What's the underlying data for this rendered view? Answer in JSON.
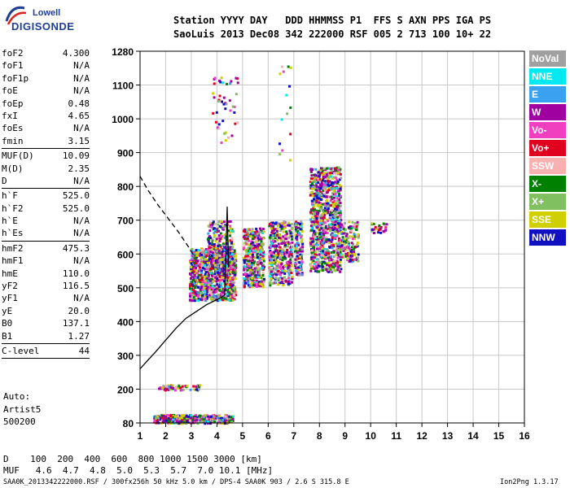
{
  "logo": {
    "line1": "Lowell",
    "line2": "DIGISONDE"
  },
  "header": {
    "line1": "Station YYYY DAY   DDD HHMMSS P1  FFS S AXN PPS IGA PS",
    "line2": "SaoLuis 2013 Dec08 342 222000 RSF 005 2 713 100 10+ 22"
  },
  "params": {
    "group1": [
      {
        "name": "foF2",
        "value": "4.300"
      },
      {
        "name": "foF1",
        "value": "N/A"
      },
      {
        "name": "foF1p",
        "value": "N/A"
      },
      {
        "name": "foE",
        "value": "N/A"
      },
      {
        "name": "foEp",
        "value": "0.48"
      },
      {
        "name": "fxI",
        "value": "4.65"
      },
      {
        "name": "foEs",
        "value": "N/A"
      },
      {
        "name": "fmin",
        "value": "3.15"
      }
    ],
    "group2": [
      {
        "name": "MUF(D)",
        "value": "10.09"
      },
      {
        "name": "M(D)",
        "value": "2.35"
      },
      {
        "name": "D",
        "value": "N/A"
      }
    ],
    "group3": [
      {
        "name": "h`F",
        "value": "525.0"
      },
      {
        "name": "h`F2",
        "value": "525.0"
      },
      {
        "name": "h`E",
        "value": "N/A"
      },
      {
        "name": "h`Es",
        "value": "N/A"
      }
    ],
    "group4": [
      {
        "name": "hmF2",
        "value": "475.3"
      },
      {
        "name": "hmF1",
        "value": "N/A"
      },
      {
        "name": "hmE",
        "value": "110.0"
      },
      {
        "name": "yF2",
        "value": "116.5"
      },
      {
        "name": "yF1",
        "value": "N/A"
      },
      {
        "name": "yE",
        "value": "20.0"
      },
      {
        "name": "B0",
        "value": "137.1"
      },
      {
        "name": "B1",
        "value": "1.27"
      }
    ],
    "group5": [
      {
        "name": "C-level",
        "value": "44"
      }
    ]
  },
  "auto": {
    "line1": "Auto:",
    "line2": "Artist5",
    "line3": "500200"
  },
  "legend": [
    {
      "label": "NoVal",
      "color": "#a0a0a0"
    },
    {
      "label": "NNE",
      "color": "#00e8f0"
    },
    {
      "label": "E",
      "color": "#3aa0f0"
    },
    {
      "label": "W",
      "color": "#a000a0"
    },
    {
      "label": "Vo-",
      "color": "#f040c0"
    },
    {
      "label": "Vo+",
      "color": "#e00020"
    },
    {
      "label": "SSW",
      "color": "#f8b0b0"
    },
    {
      "label": "X-",
      "color": "#008000"
    },
    {
      "label": "X+",
      "color": "#80c060"
    },
    {
      "label": "SSE",
      "color": "#d0d000"
    },
    {
      "label": "NNW",
      "color": "#1010c0"
    }
  ],
  "bottom": {
    "d_row": "D    100  200  400  600  800 1000 1500 3000 [km]",
    "muf_row": "MUF   4.6  4.7  4.8  5.0  5.3  5.7  7.0 10.1 [MHz]",
    "footer_left": "SAA0K_2013342222000.RSF / 300fx256h 50 kHz 5.0 km / DPS-4 SAA0K 903 / 2.6 S 315.8 E",
    "footer_right": "Ion2Png 1.3.17"
  },
  "chart_data": {
    "type": "scatter",
    "xlim": [
      1,
      16
    ],
    "ylim": [
      80,
      1280
    ],
    "x_ticks": [
      1,
      2,
      3,
      4,
      5,
      6,
      7,
      8,
      9,
      10,
      11,
      12,
      13,
      14,
      15,
      16
    ],
    "y_ticks": [
      80,
      200,
      300,
      400,
      500,
      600,
      700,
      800,
      900,
      1000,
      1100,
      1280
    ],
    "grid": true,
    "clusters": [
      {
        "name": "F-trace-main",
        "x": [
          2.9,
          4.7
        ],
        "y": [
          465,
          620
        ],
        "n": 950
      },
      {
        "name": "F-trace-upper",
        "x": [
          3.6,
          4.6
        ],
        "y": [
          540,
          700
        ],
        "n": 250
      },
      {
        "name": "block-5",
        "x": [
          5.0,
          5.8
        ],
        "y": [
          505,
          680
        ],
        "n": 380
      },
      {
        "name": "block-6",
        "x": [
          6.0,
          6.9
        ],
        "y": [
          510,
          700
        ],
        "n": 380
      },
      {
        "name": "block-7",
        "x": [
          7.0,
          7.3
        ],
        "y": [
          540,
          700
        ],
        "n": 140
      },
      {
        "name": "block-8",
        "x": [
          7.6,
          8.8
        ],
        "y": [
          550,
          860
        ],
        "n": 900
      },
      {
        "name": "block-9",
        "x": [
          8.8,
          9.5
        ],
        "y": [
          580,
          700
        ],
        "n": 140
      },
      {
        "name": "sparse-10",
        "x": [
          10.0,
          10.6
        ],
        "y": [
          665,
          695
        ],
        "n": 30
      },
      {
        "name": "Es-low",
        "x": [
          1.5,
          4.6
        ],
        "y": [
          82,
          112
        ],
        "n": 380
      },
      {
        "name": "Es-200",
        "x": [
          1.7,
          3.3
        ],
        "y": [
          200,
          215
        ],
        "n": 60
      },
      {
        "name": "upper-scatter",
        "x": [
          3.8,
          4.8
        ],
        "y": [
          930,
          1150
        ],
        "n": 45
      },
      {
        "name": "sparse-7",
        "x": [
          6.4,
          6.9
        ],
        "y": [
          880,
          1280
        ],
        "n": 15
      }
    ],
    "profile_curve": {
      "x": [
        1.0,
        1.3,
        1.6,
        2.0,
        2.4,
        2.8,
        3.2,
        3.6,
        4.0,
        4.2,
        4.3
      ],
      "y": [
        260,
        285,
        310,
        345,
        380,
        410,
        430,
        450,
        465,
        473,
        478
      ]
    },
    "profile_dashed": {
      "x": [
        1.0,
        1.3,
        1.7,
        2.1,
        2.5,
        2.9,
        3.1
      ],
      "y": [
        830,
        790,
        745,
        705,
        665,
        620,
        595
      ]
    },
    "profile_spike": {
      "x": [
        4.3,
        4.35,
        4.4,
        4.45
      ],
      "y": [
        478,
        600,
        740,
        560
      ]
    }
  }
}
